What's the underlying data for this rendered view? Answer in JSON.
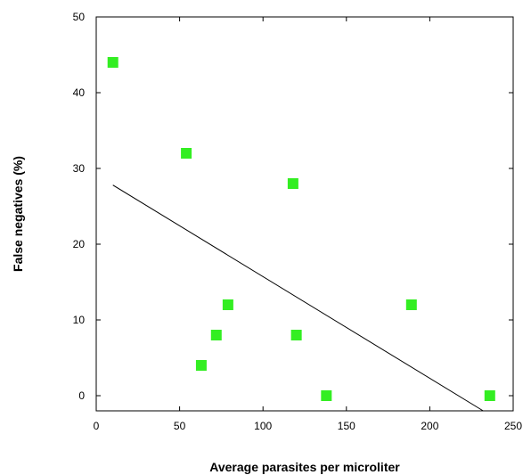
{
  "chart_data": {
    "type": "scatter",
    "title": "",
    "xlabel": "Average parasites per microliter",
    "ylabel": "False negatives (%)",
    "xlim": [
      0,
      250
    ],
    "ylim": [
      -2,
      50
    ],
    "xticks": [
      0,
      50,
      100,
      150,
      200,
      250
    ],
    "yticks": [
      0,
      10,
      20,
      30,
      40,
      50
    ],
    "grid": false,
    "legend": "none",
    "colors": {
      "marker": "#33ee22",
      "trendline": "#000000",
      "axis": "#000000"
    },
    "series": [
      {
        "points": [
          {
            "x": 10,
            "y": 44
          },
          {
            "x": 54,
            "y": 32
          },
          {
            "x": 118,
            "y": 28
          },
          {
            "x": 79,
            "y": 12
          },
          {
            "x": 189,
            "y": 12
          },
          {
            "x": 72,
            "y": 8
          },
          {
            "x": 120,
            "y": 8
          },
          {
            "x": 63,
            "y": 4
          },
          {
            "x": 138,
            "y": 0
          },
          {
            "x": 236,
            "y": 0
          }
        ]
      }
    ],
    "trendline": {
      "x1": 10,
      "y1": 27.8,
      "x2": 232,
      "y2": -2
    }
  }
}
